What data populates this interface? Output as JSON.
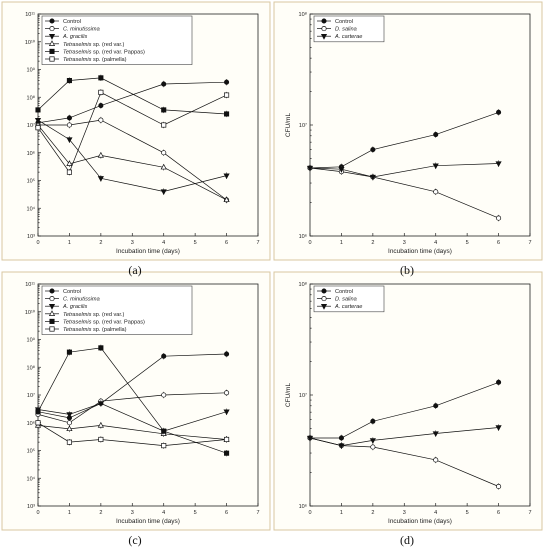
{
  "chart_data": [
    {
      "panel": "a",
      "type": "line",
      "xlabel": "Incubation time (days)",
      "ylabel": "",
      "xlim": [
        0,
        7
      ],
      "ylim_log10": [
        3,
        11
      ],
      "y_scale": "log",
      "x_ticks": [
        "0",
        "1",
        "2",
        "3",
        "4",
        "5",
        "6",
        "7"
      ],
      "y_ticks": [
        "10³",
        "10⁴",
        "10⁵",
        "10⁶",
        "10⁷",
        "10⁸",
        "10⁹",
        "10¹⁰",
        "10¹¹"
      ],
      "legend_position": "top-left",
      "series": [
        {
          "name": "Control",
          "marker": "filled-circle",
          "x": [
            0,
            1,
            2,
            4,
            6
          ],
          "y": [
            12000000,
            18000000,
            50000000,
            300000000,
            350000000
          ]
        },
        {
          "name": "C. minutissima",
          "italic": true,
          "marker": "open-circle",
          "x": [
            0,
            1,
            2,
            4,
            6
          ],
          "y": [
            10000000,
            10000000,
            15000000,
            1000000,
            20000
          ]
        },
        {
          "name": "A. gracilis",
          "italic": true,
          "marker": "filled-triangle",
          "x": [
            0,
            1,
            2,
            4,
            6
          ],
          "y": [
            15000000,
            3000000,
            120000,
            40000,
            150000
          ]
        },
        {
          "name": "Tetraselmis sp. (red var.)",
          "italic_prefix": "Tetraselmis",
          "marker": "open-triangle",
          "x": [
            0,
            1,
            2,
            4,
            6
          ],
          "y": [
            10000000,
            400000,
            800000,
            300000,
            20000
          ]
        },
        {
          "name": "Tetraselmis sp. (red var. Pappas)",
          "italic_prefix": "Tetraselmis",
          "marker": "filled-square",
          "x": [
            0,
            1,
            2,
            4,
            6
          ],
          "y": [
            35000000,
            400000000,
            500000000,
            35000000,
            25000000
          ]
        },
        {
          "name": "Tetraselmis sp. (palmella)",
          "italic_prefix": "Tetraselmis",
          "marker": "open-square",
          "x": [
            0,
            1,
            2,
            4,
            6
          ],
          "y": [
            8000000,
            200000,
            150000000,
            10000000,
            120000000
          ]
        }
      ]
    },
    {
      "panel": "b",
      "type": "line",
      "xlabel": "Incubation time (days)",
      "ylabel": "CFU/mL",
      "xlim": [
        0,
        7
      ],
      "ylim_log10": [
        6,
        8
      ],
      "y_scale": "log",
      "x_ticks": [
        "0",
        "1",
        "2",
        "3",
        "4",
        "5",
        "6",
        "7"
      ],
      "y_ticks": [
        "10⁶",
        "10⁷",
        "10⁸"
      ],
      "legend_position": "top-left",
      "series": [
        {
          "name": "Control",
          "marker": "filled-circle",
          "x": [
            0,
            1,
            2,
            4,
            6
          ],
          "y": [
            4100000,
            4200000,
            6000000,
            8200000,
            13000000
          ]
        },
        {
          "name": "D. salina",
          "italic": true,
          "marker": "open-circle",
          "x": [
            0,
            1,
            2,
            4,
            6
          ],
          "y": [
            4100000,
            3800000,
            3400000,
            2500000,
            1450000
          ]
        },
        {
          "name": "A. carterae",
          "italic": true,
          "marker": "filled-triangle",
          "x": [
            0,
            1,
            2,
            4,
            6
          ],
          "y": [
            4100000,
            4000000,
            3400000,
            4300000,
            4500000
          ]
        }
      ]
    },
    {
      "panel": "c",
      "type": "line",
      "xlabel": "Incubation time (days)",
      "ylabel": "",
      "xlim": [
        0,
        7
      ],
      "ylim_log10": [
        3,
        11
      ],
      "y_scale": "log",
      "x_ticks": [
        "0",
        "1",
        "2",
        "3",
        "4",
        "5",
        "6",
        "7"
      ],
      "y_ticks": [
        "10³",
        "10⁴",
        "10⁵",
        "10⁶",
        "10⁷",
        "10⁸",
        "10⁹",
        "10¹⁰",
        "10¹¹"
      ],
      "legend_position": "top-left",
      "series": [
        {
          "name": "Control",
          "marker": "filled-circle",
          "x": [
            0,
            1,
            2,
            4,
            6
          ],
          "y": [
            2500000,
            1500000,
            5000000,
            250000000,
            300000000
          ]
        },
        {
          "name": "C. minutissima",
          "italic": true,
          "marker": "open-circle",
          "x": [
            0,
            1,
            2,
            4,
            6
          ],
          "y": [
            2000000,
            1000000,
            6000000,
            10000000,
            12000000
          ]
        },
        {
          "name": "A. gracilis",
          "italic": true,
          "marker": "filled-triangle",
          "x": [
            0,
            1,
            2,
            4,
            6
          ],
          "y": [
            3000000,
            2000000,
            5000000,
            500000,
            2500000
          ]
        },
        {
          "name": "Tetraselmis sp. (red var.)",
          "italic_prefix": "Tetraselmis",
          "marker": "open-triangle",
          "x": [
            0,
            1,
            2,
            4,
            6
          ],
          "y": [
            800000,
            600000,
            800000,
            400000,
            250000
          ]
        },
        {
          "name": "Tetraselmis sp. (red var. Pappas)",
          "italic_prefix": "Tetraselmis",
          "marker": "filled-square",
          "x": [
            0,
            1,
            2,
            4,
            6
          ],
          "y": [
            2500000,
            350000000,
            500000000,
            500000,
            80000
          ]
        },
        {
          "name": "Tetraselmis sp. (palmella)",
          "italic_prefix": "Tetraselmis",
          "marker": "open-square",
          "x": [
            0,
            1,
            2,
            4,
            6
          ],
          "y": [
            1000000,
            200000,
            250000,
            150000,
            250000
          ]
        }
      ]
    },
    {
      "panel": "d",
      "type": "line",
      "xlabel": "Incubation time (days)",
      "ylabel": "CFU/mL",
      "xlim": [
        0,
        7
      ],
      "ylim_log10": [
        6,
        8
      ],
      "y_scale": "log",
      "x_ticks": [
        "0",
        "1",
        "2",
        "3",
        "4",
        "5",
        "6",
        "7"
      ],
      "y_ticks": [
        "10⁶",
        "10⁷",
        "10⁸"
      ],
      "legend_position": "top-left",
      "series": [
        {
          "name": "Control",
          "marker": "filled-circle",
          "x": [
            0,
            1,
            2,
            4,
            6
          ],
          "y": [
            4100000,
            4100000,
            5800000,
            8000000,
            13000000
          ]
        },
        {
          "name": "D. salina",
          "italic": true,
          "marker": "open-circle",
          "x": [
            0,
            1,
            2,
            4,
            6
          ],
          "y": [
            4100000,
            3500000,
            3400000,
            2600000,
            1500000
          ]
        },
        {
          "name": "A. carterae",
          "italic": true,
          "marker": "filled-triangle",
          "x": [
            0,
            1,
            2,
            4,
            6
          ],
          "y": [
            4100000,
            3500000,
            3900000,
            4500000,
            5100000
          ]
        }
      ]
    }
  ],
  "captions": [
    "(a)",
    "(b)",
    "(c)",
    "(d)"
  ]
}
